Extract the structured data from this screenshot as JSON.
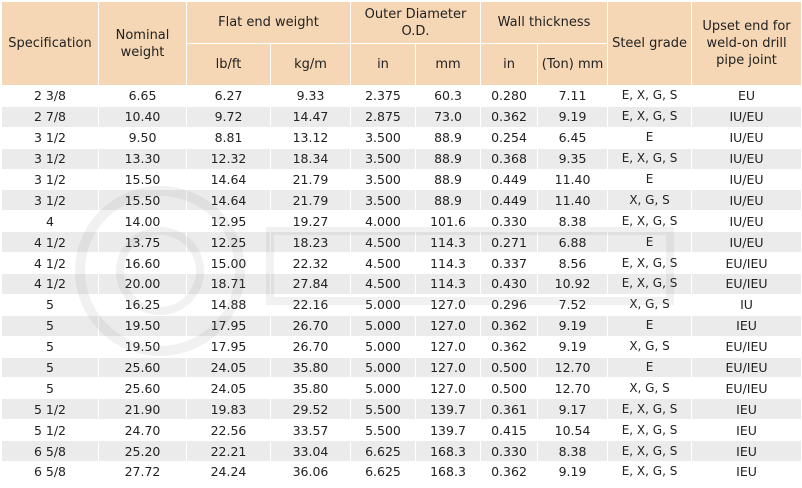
{
  "table": {
    "headers": {
      "specification": "Specification",
      "nominal_weight": "Nominal weight",
      "flat_end_weight": "Flat end weight",
      "lb_ft": "lb/ft",
      "kg_m": "kg/m",
      "outer_diameter": "Outer Diameter O.D.",
      "od_in": "in",
      "od_mm": "mm",
      "wall_thickness": "Wall thickness",
      "wt_in": "in",
      "wt_mm": "(Ton) mm",
      "steel_grade": "Steel grade",
      "upset_end": "Upset end for weld-on drill pipe joint"
    },
    "rows": [
      {
        "spec": "2 3/8",
        "nominal": "6.65",
        "lbft": "6.27",
        "kgm": "9.33",
        "od_in": "2.375",
        "od_mm": "60.3",
        "wt_in": "0.280",
        "wt_mm": "7.11",
        "grade": "E, X, G, S",
        "upset": "EU"
      },
      {
        "spec": "2 7/8",
        "nominal": "10.40",
        "lbft": "9.72",
        "kgm": "14.47",
        "od_in": "2.875",
        "od_mm": "73.0",
        "wt_in": "0.362",
        "wt_mm": "9.19",
        "grade": "E, X, G, S",
        "upset": "IU/EU"
      },
      {
        "spec": "3 1/2",
        "nominal": "9.50",
        "lbft": "8.81",
        "kgm": "13.12",
        "od_in": "3.500",
        "od_mm": "88.9",
        "wt_in": "0.254",
        "wt_mm": "6.45",
        "grade": "E",
        "upset": "IU/EU"
      },
      {
        "spec": "3 1/2",
        "nominal": "13.30",
        "lbft": "12.32",
        "kgm": "18.34",
        "od_in": "3.500",
        "od_mm": "88.9",
        "wt_in": "0.368",
        "wt_mm": "9.35",
        "grade": "E, X, G, S",
        "upset": "IU/EU"
      },
      {
        "spec": "3 1/2",
        "nominal": "15.50",
        "lbft": "14.64",
        "kgm": "21.79",
        "od_in": "3.500",
        "od_mm": "88.9",
        "wt_in": "0.449",
        "wt_mm": "11.40",
        "grade": "E",
        "upset": "IU/EU"
      },
      {
        "spec": "3 1/2",
        "nominal": "15.50",
        "lbft": "14.64",
        "kgm": "21.79",
        "od_in": "3.500",
        "od_mm": "88.9",
        "wt_in": "0.449",
        "wt_mm": "11.40",
        "grade": "X, G, S",
        "upset": "IU/EU"
      },
      {
        "spec": "4",
        "nominal": "14.00",
        "lbft": "12.95",
        "kgm": "19.27",
        "od_in": "4.000",
        "od_mm": "101.6",
        "wt_in": "0.330",
        "wt_mm": "8.38",
        "grade": "E, X, G, S",
        "upset": "IU/EU"
      },
      {
        "spec": "4 1/2",
        "nominal": "13.75",
        "lbft": "12.25",
        "kgm": "18.23",
        "od_in": "4.500",
        "od_mm": "114.3",
        "wt_in": "0.271",
        "wt_mm": "6.88",
        "grade": "E",
        "upset": "IU/EU"
      },
      {
        "spec": "4 1/2",
        "nominal": "16.60",
        "lbft": "15.00",
        "kgm": "22.32",
        "od_in": "4.500",
        "od_mm": "114.3",
        "wt_in": "0.337",
        "wt_mm": "8.56",
        "grade": "E, X, G, S",
        "upset": "EU/IEU"
      },
      {
        "spec": "4 1/2",
        "nominal": "20.00",
        "lbft": "18.71",
        "kgm": "27.84",
        "od_in": "4.500",
        "od_mm": "114.3",
        "wt_in": "0.430",
        "wt_mm": "10.92",
        "grade": "E, X, G, S",
        "upset": "EU/IEU"
      },
      {
        "spec": "5",
        "nominal": "16.25",
        "lbft": "14.88",
        "kgm": "22.16",
        "od_in": "5.000",
        "od_mm": "127.0",
        "wt_in": "0.296",
        "wt_mm": "7.52",
        "grade": "X, G, S",
        "upset": "IU"
      },
      {
        "spec": "5",
        "nominal": "19.50",
        "lbft": "17.95",
        "kgm": "26.70",
        "od_in": "5.000",
        "od_mm": "127.0",
        "wt_in": "0.362",
        "wt_mm": "9.19",
        "grade": "E",
        "upset": "IEU"
      },
      {
        "spec": "5",
        "nominal": "19.50",
        "lbft": "17.95",
        "kgm": "26.70",
        "od_in": "5.000",
        "od_mm": "127.0",
        "wt_in": "0.362",
        "wt_mm": "9.19",
        "grade": "X, G, S",
        "upset": "EU/IEU"
      },
      {
        "spec": "5",
        "nominal": "25.60",
        "lbft": "24.05",
        "kgm": "35.80",
        "od_in": "5.000",
        "od_mm": "127.0",
        "wt_in": "0.500",
        "wt_mm": "12.70",
        "grade": "E",
        "upset": "EU/IEU"
      },
      {
        "spec": "5",
        "nominal": "25.60",
        "lbft": "24.05",
        "kgm": "35.80",
        "od_in": "5.000",
        "od_mm": "127.0",
        "wt_in": "0.500",
        "wt_mm": "12.70",
        "grade": "X, G, S",
        "upset": "EU/IEU"
      },
      {
        "spec": "5 1/2",
        "nominal": "21.90",
        "lbft": "19.83",
        "kgm": "29.52",
        "od_in": "5.500",
        "od_mm": "139.7",
        "wt_in": "0.361",
        "wt_mm": "9.17",
        "grade": "E, X, G, S",
        "upset": "IEU"
      },
      {
        "spec": "5 1/2",
        "nominal": "24.70",
        "lbft": "22.56",
        "kgm": "33.57",
        "od_in": "5.500",
        "od_mm": "139.7",
        "wt_in": "0.415",
        "wt_mm": "10.54",
        "grade": "E, X, G, S",
        "upset": "IEU"
      },
      {
        "spec": "6 5/8",
        "nominal": "25.20",
        "lbft": "22.21",
        "kgm": "33.04",
        "od_in": "6.625",
        "od_mm": "168.3",
        "wt_in": "0.330",
        "wt_mm": "8.38",
        "grade": "E, X, G, S",
        "upset": "IEU"
      },
      {
        "spec": "6 5/8",
        "nominal": "27.72",
        "lbft": "24.24",
        "kgm": "36.06",
        "od_in": "6.625",
        "od_mm": "168.3",
        "wt_in": "0.362",
        "wt_mm": "9.19",
        "grade": "E, X, G, S",
        "upset": "IEU"
      }
    ]
  },
  "colors": {
    "header_bg": "#f5d7b5",
    "row_alt_bg": "#ebebeb",
    "row_bg": "#ffffff"
  }
}
